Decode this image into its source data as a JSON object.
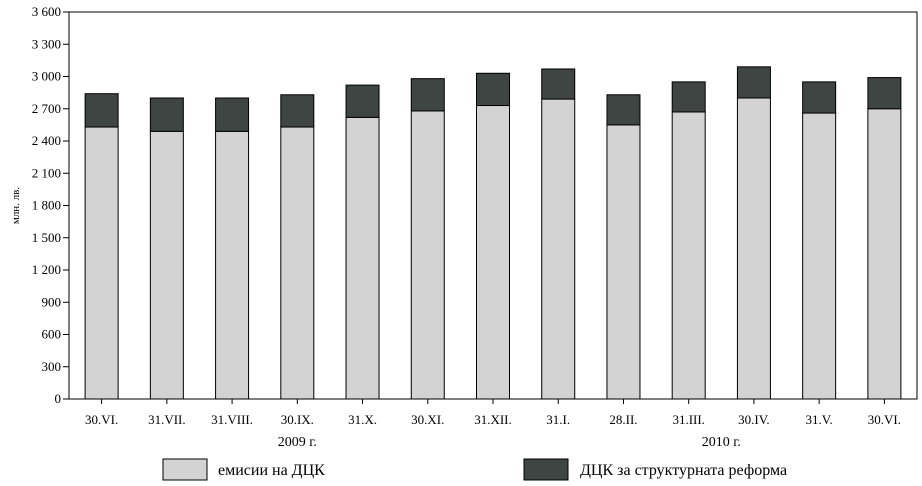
{
  "chart_data": {
    "type": "bar",
    "stacked": true,
    "title": "",
    "xlabel": "",
    "ylabel": "млн. лв.",
    "ylim": [
      0,
      3600
    ],
    "yticks": [
      0,
      300,
      600,
      900,
      1200,
      1500,
      1800,
      2100,
      2400,
      2700,
      3000,
      3300,
      3600
    ],
    "ytick_labels": [
      "0",
      "300",
      "600",
      "900",
      "1 200",
      "1 500",
      "1 800",
      "2 100",
      "2 400",
      "2 700",
      "3 000",
      "3 300",
      "3 600"
    ],
    "categories": [
      "30.VI.",
      "31.VII.",
      "31.VIII.",
      "30.IX.",
      "31.X.",
      "30.XI.",
      "31.XII.",
      "31.I.",
      "28.II.",
      "31.III.",
      "30.IV.",
      "31.V.",
      "30.VI."
    ],
    "year_groups": [
      {
        "label": "2009 г.",
        "start": 0,
        "end": 6
      },
      {
        "label": "2010 г.",
        "start": 7,
        "end": 12
      }
    ],
    "series": [
      {
        "name": "емисии на ДЦК",
        "color": "#d3d3d3",
        "values": [
          2530,
          2490,
          2490,
          2530,
          2620,
          2680,
          2730,
          2790,
          2550,
          2670,
          2800,
          2660,
          2700
        ]
      },
      {
        "name": "ДЦК за структурната реформа",
        "color": "#3e4543",
        "values": [
          310,
          310,
          310,
          300,
          300,
          300,
          300,
          280,
          280,
          280,
          290,
          290,
          290
        ]
      }
    ],
    "grid": false,
    "legend_position": "bottom"
  }
}
